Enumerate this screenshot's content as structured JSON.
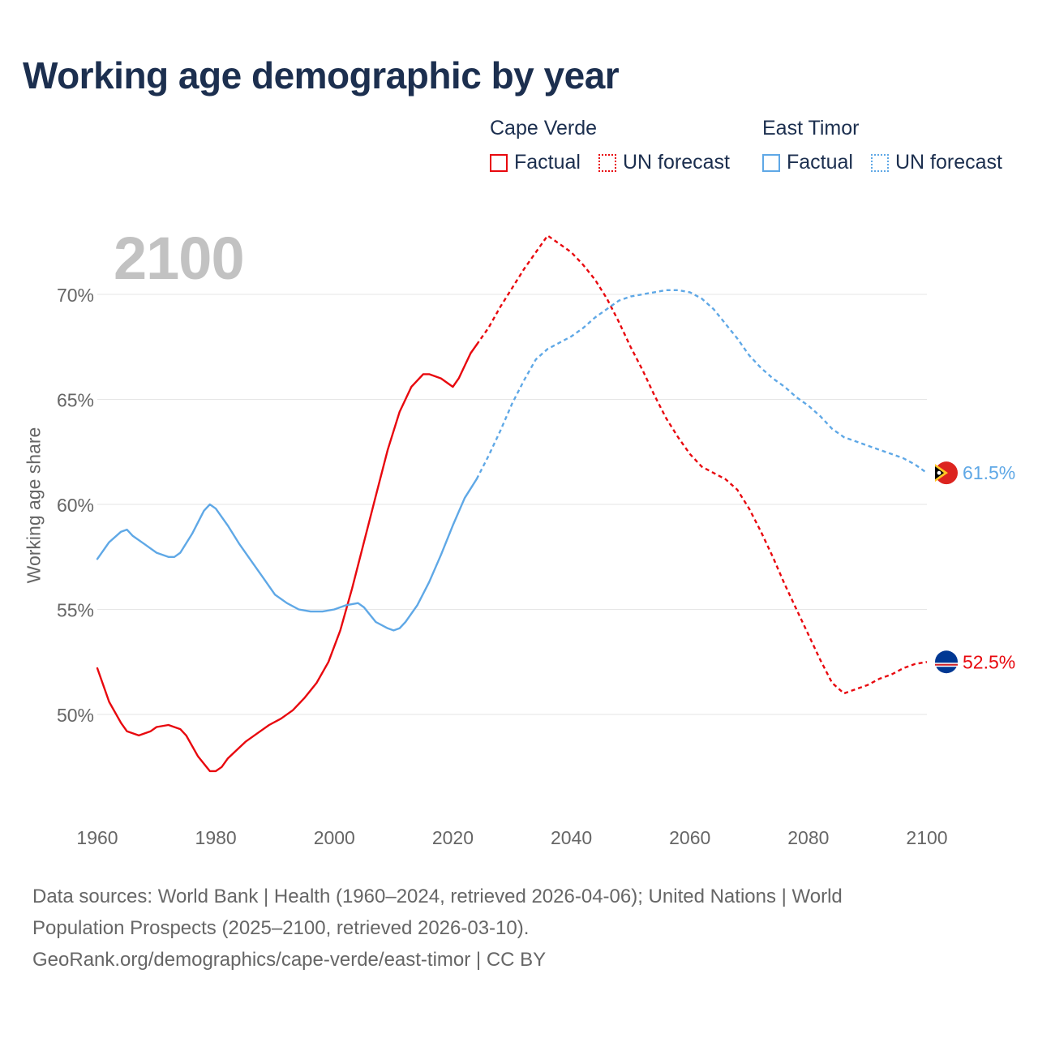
{
  "title": "Working age demographic by year",
  "year_label": "2100",
  "legend": {
    "groups": [
      {
        "name": "Cape Verde",
        "factual": "Factual",
        "forecast": "UN forecast",
        "color": "#e8080e"
      },
      {
        "name": "East Timor",
        "factual": "Factual",
        "forecast": "UN forecast",
        "color": "#5fa8e6"
      }
    ]
  },
  "ylabel": "Working age share",
  "source": {
    "line1": "Data sources: World Bank | Health (1960–2024, retrieved 2026-04-06); United Nations | World",
    "line2": "Population Prospects (2025–2100, retrieved 2026-03-10).",
    "line3": "GeoRank.org/demographics/cape-verde/east-timor | CC BY"
  },
  "chart_data": {
    "type": "line",
    "title": "Working age demographic by year",
    "xlabel": "",
    "ylabel": "Working age share",
    "xlim": [
      1960,
      2100
    ],
    "ylim": [
      45,
      73
    ],
    "x_ticks": [
      "1960",
      "1980",
      "2000",
      "2020",
      "2040",
      "2060",
      "2080",
      "2100"
    ],
    "y_ticks": [
      "50%",
      "55%",
      "60%",
      "65%",
      "70%"
    ],
    "grid": true,
    "forecast_start": 2024,
    "series": [
      {
        "name": "Cape Verde",
        "color": "#e8080e",
        "end_label": "52.5%",
        "flag": "cape-verde",
        "points": [
          [
            1960,
            52.2
          ],
          [
            1962,
            50.6
          ],
          [
            1964,
            49.6
          ],
          [
            1965,
            49.2
          ],
          [
            1967,
            49.0
          ],
          [
            1969,
            49.2
          ],
          [
            1970,
            49.4
          ],
          [
            1972,
            49.5
          ],
          [
            1974,
            49.3
          ],
          [
            1975,
            49.0
          ],
          [
            1977,
            48.0
          ],
          [
            1979,
            47.3
          ],
          [
            1980,
            47.3
          ],
          [
            1981,
            47.5
          ],
          [
            1982,
            47.9
          ],
          [
            1985,
            48.7
          ],
          [
            1987,
            49.1
          ],
          [
            1989,
            49.5
          ],
          [
            1991,
            49.8
          ],
          [
            1993,
            50.2
          ],
          [
            1995,
            50.8
          ],
          [
            1997,
            51.5
          ],
          [
            1999,
            52.5
          ],
          [
            2001,
            54.0
          ],
          [
            2003,
            56.0
          ],
          [
            2005,
            58.2
          ],
          [
            2007,
            60.4
          ],
          [
            2009,
            62.6
          ],
          [
            2011,
            64.4
          ],
          [
            2013,
            65.6
          ],
          [
            2015,
            66.2
          ],
          [
            2016,
            66.2
          ],
          [
            2018,
            66.0
          ],
          [
            2020,
            65.6
          ],
          [
            2021,
            66.0
          ],
          [
            2022,
            66.6
          ],
          [
            2023,
            67.2
          ],
          [
            2024,
            67.6
          ],
          [
            2026,
            68.4
          ],
          [
            2028,
            69.4
          ],
          [
            2030,
            70.3
          ],
          [
            2032,
            71.2
          ],
          [
            2034,
            72.0
          ],
          [
            2036,
            72.8
          ],
          [
            2038,
            72.4
          ],
          [
            2040,
            72.0
          ],
          [
            2042,
            71.4
          ],
          [
            2044,
            70.7
          ],
          [
            2046,
            69.8
          ],
          [
            2048,
            68.7
          ],
          [
            2050,
            67.5
          ],
          [
            2052,
            66.4
          ],
          [
            2054,
            65.2
          ],
          [
            2056,
            64.1
          ],
          [
            2058,
            63.2
          ],
          [
            2060,
            62.4
          ],
          [
            2062,
            61.8
          ],
          [
            2064,
            61.5
          ],
          [
            2066,
            61.2
          ],
          [
            2068,
            60.7
          ],
          [
            2070,
            59.8
          ],
          [
            2072,
            58.7
          ],
          [
            2074,
            57.5
          ],
          [
            2076,
            56.2
          ],
          [
            2078,
            55.0
          ],
          [
            2080,
            53.8
          ],
          [
            2082,
            52.6
          ],
          [
            2084,
            51.5
          ],
          [
            2086,
            51.0
          ],
          [
            2088,
            51.2
          ],
          [
            2090,
            51.4
          ],
          [
            2092,
            51.7
          ],
          [
            2094,
            51.9
          ],
          [
            2096,
            52.2
          ],
          [
            2098,
            52.4
          ],
          [
            2100,
            52.5
          ]
        ]
      },
      {
        "name": "East Timor",
        "color": "#5fa8e6",
        "end_label": "61.5%",
        "flag": "east-timor",
        "points": [
          [
            1960,
            57.4
          ],
          [
            1962,
            58.2
          ],
          [
            1964,
            58.7
          ],
          [
            1965,
            58.8
          ],
          [
            1966,
            58.5
          ],
          [
            1968,
            58.1
          ],
          [
            1970,
            57.7
          ],
          [
            1972,
            57.5
          ],
          [
            1973,
            57.5
          ],
          [
            1974,
            57.7
          ],
          [
            1976,
            58.6
          ],
          [
            1978,
            59.7
          ],
          [
            1979,
            60.0
          ],
          [
            1980,
            59.8
          ],
          [
            1982,
            59.0
          ],
          [
            1984,
            58.1
          ],
          [
            1986,
            57.3
          ],
          [
            1988,
            56.5
          ],
          [
            1990,
            55.7
          ],
          [
            1992,
            55.3
          ],
          [
            1994,
            55.0
          ],
          [
            1996,
            54.9
          ],
          [
            1998,
            54.9
          ],
          [
            2000,
            55.0
          ],
          [
            2002,
            55.2
          ],
          [
            2004,
            55.3
          ],
          [
            2005,
            55.1
          ],
          [
            2007,
            54.4
          ],
          [
            2009,
            54.1
          ],
          [
            2010,
            54.0
          ],
          [
            2011,
            54.1
          ],
          [
            2012,
            54.4
          ],
          [
            2014,
            55.2
          ],
          [
            2016,
            56.3
          ],
          [
            2018,
            57.6
          ],
          [
            2020,
            59.0
          ],
          [
            2022,
            60.3
          ],
          [
            2024,
            61.2
          ],
          [
            2026,
            62.3
          ],
          [
            2028,
            63.5
          ],
          [
            2030,
            64.8
          ],
          [
            2032,
            65.9
          ],
          [
            2034,
            66.9
          ],
          [
            2036,
            67.4
          ],
          [
            2038,
            67.7
          ],
          [
            2040,
            68.0
          ],
          [
            2042,
            68.4
          ],
          [
            2044,
            68.9
          ],
          [
            2046,
            69.3
          ],
          [
            2048,
            69.7
          ],
          [
            2050,
            69.9
          ],
          [
            2052,
            70.0
          ],
          [
            2054,
            70.1
          ],
          [
            2056,
            70.2
          ],
          [
            2058,
            70.2
          ],
          [
            2060,
            70.1
          ],
          [
            2062,
            69.8
          ],
          [
            2064,
            69.3
          ],
          [
            2066,
            68.6
          ],
          [
            2068,
            67.9
          ],
          [
            2070,
            67.1
          ],
          [
            2072,
            66.5
          ],
          [
            2074,
            66.0
          ],
          [
            2076,
            65.6
          ],
          [
            2078,
            65.1
          ],
          [
            2080,
            64.7
          ],
          [
            2082,
            64.2
          ],
          [
            2084,
            63.6
          ],
          [
            2086,
            63.2
          ],
          [
            2088,
            63.0
          ],
          [
            2090,
            62.8
          ],
          [
            2092,
            62.6
          ],
          [
            2094,
            62.4
          ],
          [
            2096,
            62.2
          ],
          [
            2098,
            61.9
          ],
          [
            2100,
            61.5
          ]
        ]
      }
    ]
  }
}
